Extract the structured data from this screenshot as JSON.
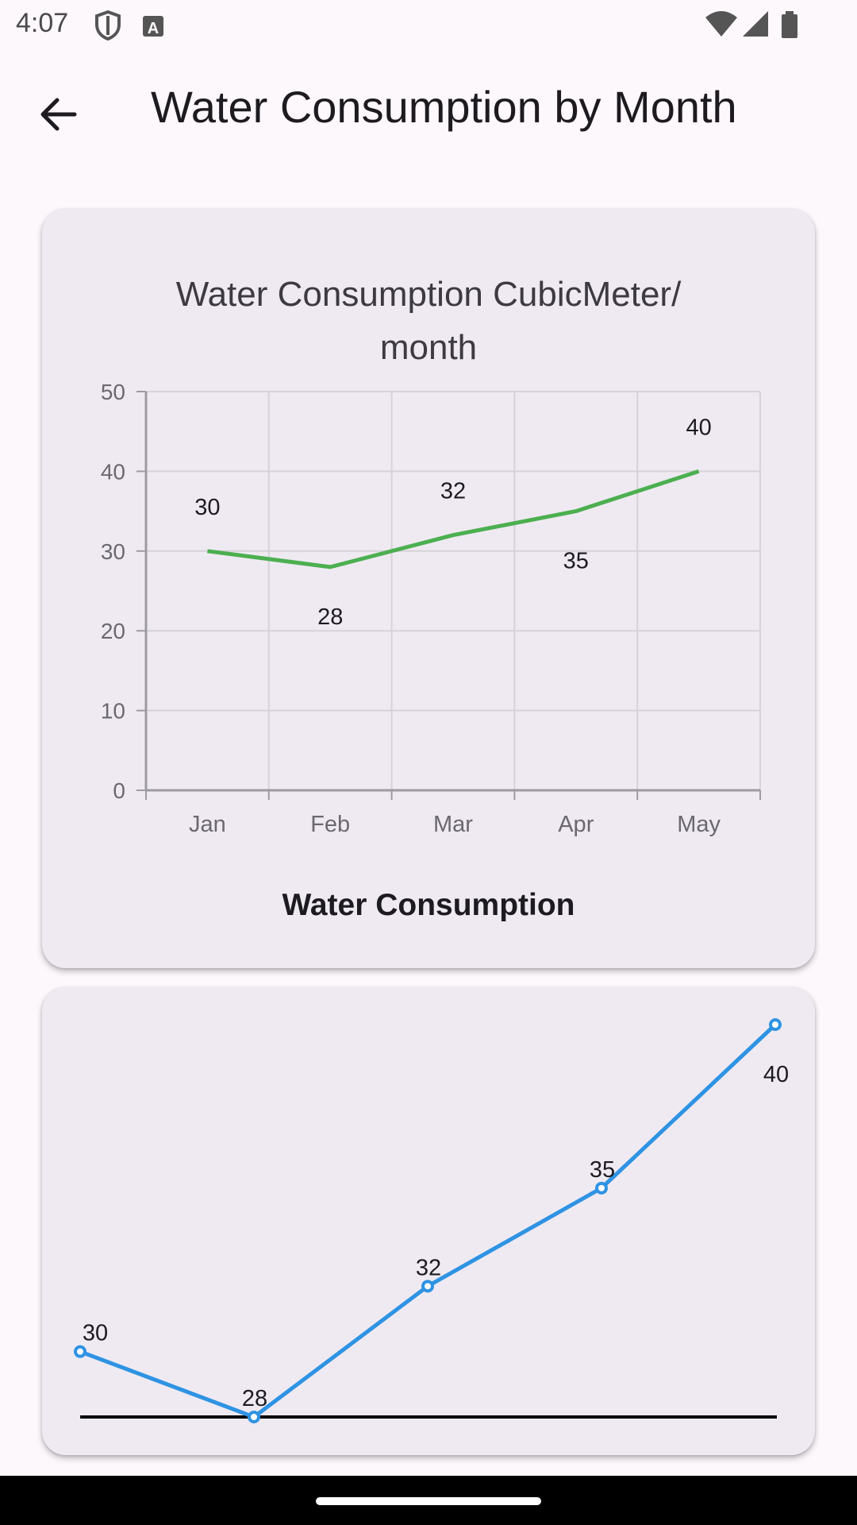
{
  "status_bar": {
    "time": "4:07",
    "left_icons": [
      "shield-icon",
      "font-a-icon"
    ],
    "right_icons": [
      "wifi-icon",
      "signal-icon",
      "battery-icon"
    ]
  },
  "app_bar": {
    "title": "Water Consumption by Month",
    "back_icon": "arrow-left-icon"
  },
  "colors": {
    "background": "#fdf8fc",
    "card": "#efeaf2",
    "line_chart_series": "#4caf50",
    "spline_series": "#2f93e3"
  },
  "chart_data": [
    {
      "type": "line",
      "title_lines": [
        "Water Consumption CubicMeter/",
        "month"
      ],
      "categories": [
        "Jan",
        "Feb",
        "Mar",
        "Apr",
        "May"
      ],
      "series": [
        {
          "values": [
            30,
            28,
            32,
            35,
            40
          ]
        }
      ],
      "data_labels": [
        "30",
        "28",
        "32",
        "35",
        "40"
      ],
      "y_ticks": [
        "0",
        "10",
        "20",
        "30",
        "40",
        "50"
      ],
      "ylim": [
        0,
        50
      ],
      "grid": true,
      "xlabel": "",
      "ylabel": "",
      "footer_label": "Water Consumption"
    },
    {
      "type": "line",
      "series": [
        {
          "values": [
            30,
            28,
            32,
            35,
            40
          ]
        }
      ],
      "data_labels": [
        "30",
        "28",
        "32",
        "35",
        "40"
      ],
      "markers": true,
      "axes": false,
      "grid": false
    }
  ]
}
